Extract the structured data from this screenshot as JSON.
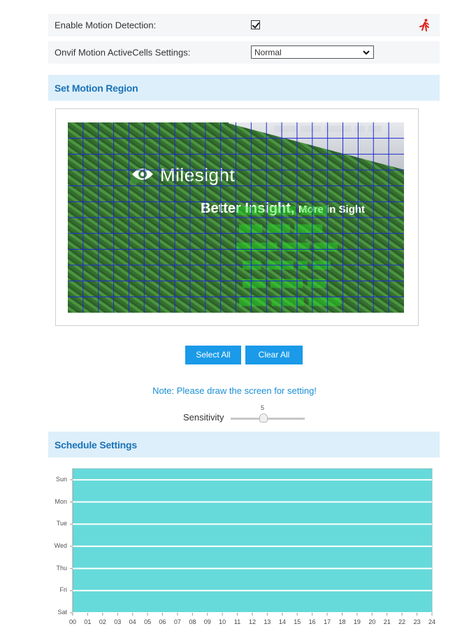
{
  "enable_row": {
    "label": "Enable Motion Detection:",
    "checked": true
  },
  "onvif_row": {
    "label": "Onvif Motion ActiveCells Settings:",
    "value": "Normal"
  },
  "motion_section": {
    "title": "Set Motion Region"
  },
  "video": {
    "logo": "Milesight",
    "tagline_a": "Better",
    "tagline_b": "Insight,",
    "tagline_c": "More in Sight"
  },
  "buttons": {
    "select_all": "Select All",
    "clear_all": "Clear All"
  },
  "note": "Note: Please draw the screen for setting!",
  "sensitivity": {
    "label": "Sensitivity",
    "value": "5"
  },
  "schedule_section": {
    "title": "Schedule Settings"
  },
  "schedule": {
    "days": [
      "Sun",
      "Mon",
      "Tue",
      "Wed",
      "Thu",
      "Fri",
      "Sat"
    ],
    "hours": [
      "00",
      "01",
      "02",
      "03",
      "04",
      "05",
      "06",
      "07",
      "08",
      "09",
      "10",
      "11",
      "12",
      "13",
      "14",
      "15",
      "16",
      "17",
      "18",
      "19",
      "20",
      "21",
      "22",
      "23",
      "24"
    ],
    "fill_color": "#66dada",
    "line_color": "#ffffff"
  },
  "colors": {
    "accent": "#1a9ae8",
    "section_title": "#1a73b8",
    "grid": "#1f2bd4",
    "osd": "#26e126",
    "runner": "#e0201e"
  }
}
